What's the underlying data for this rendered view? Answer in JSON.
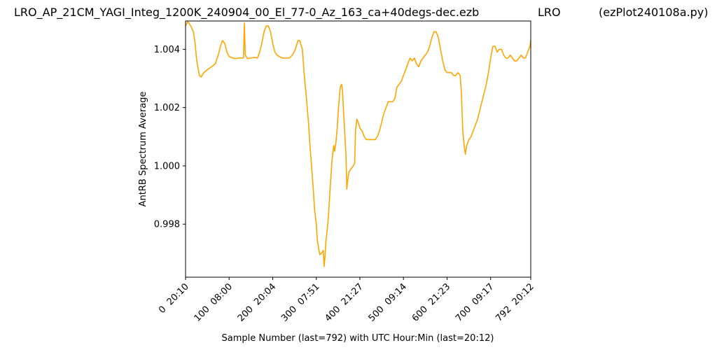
{
  "chart_data": {
    "type": "line",
    "title": "LRO_AP_21CM_YAGI_Integ_1200K_240904_00_El_77-0_Az_163_ca+40degs-dec.ezb",
    "title_center": "LRO",
    "title_right": "(ezPlot240108a.py)",
    "xlabel": "Sample Number (last=792) with UTC Hour:Min (last=20:12)",
    "ylabel": "AntRB Spectrum Average",
    "xlim": [
      0,
      792
    ],
    "ylim": [
      0.99618,
      1.00497
    ],
    "grid": false,
    "x_ticks": [
      {
        "value": 0,
        "label": "0  20:10"
      },
      {
        "value": 100,
        "label": "100  08:00"
      },
      {
        "value": 200,
        "label": "200  20:04"
      },
      {
        "value": 300,
        "label": "300  07:51"
      },
      {
        "value": 400,
        "label": "400  21:27"
      },
      {
        "value": 500,
        "label": "500  09:14"
      },
      {
        "value": 600,
        "label": "600  21:23"
      },
      {
        "value": 700,
        "label": "700  09:17"
      },
      {
        "value": 792,
        "label": "792  20:12"
      }
    ],
    "y_ticks": [
      {
        "value": 0.998,
        "label": "0.998"
      },
      {
        "value": 1.0,
        "label": "1.000"
      },
      {
        "value": 1.002,
        "label": "1.002"
      },
      {
        "value": 1.004,
        "label": "1.004"
      }
    ],
    "series": [
      {
        "name": "",
        "color": "#ffa500",
        "points": [
          [
            0,
            1.0048
          ],
          [
            5,
            1.00495
          ],
          [
            12,
            1.0048
          ],
          [
            18,
            1.0046
          ],
          [
            22,
            1.0042
          ],
          [
            25,
            1.0037
          ],
          [
            28,
            1.0034
          ],
          [
            32,
            1.0031
          ],
          [
            36,
            1.00305
          ],
          [
            42,
            1.0032
          ],
          [
            50,
            1.0033
          ],
          [
            60,
            1.0034
          ],
          [
            68,
            1.0035
          ],
          [
            75,
            1.0038
          ],
          [
            80,
            1.0041
          ],
          [
            85,
            1.0043
          ],
          [
            90,
            1.0042
          ],
          [
            95,
            1.0039
          ],
          [
            100,
            1.00375
          ],
          [
            108,
            1.0037
          ],
          [
            115,
            1.00368
          ],
          [
            122,
            1.0037
          ],
          [
            128,
            1.0037
          ],
          [
            133,
            1.0037
          ],
          [
            135,
            1.0049
          ],
          [
            137,
            1.0038
          ],
          [
            142,
            1.00368
          ],
          [
            150,
            1.0037
          ],
          [
            158,
            1.00372
          ],
          [
            165,
            1.0037
          ],
          [
            170,
            1.0039
          ],
          [
            175,
            1.0042
          ],
          [
            180,
            1.0046
          ],
          [
            185,
            1.0048
          ],
          [
            190,
            1.0048
          ],
          [
            195,
            1.0046
          ],
          [
            200,
            1.0042
          ],
          [
            205,
            1.0039
          ],
          [
            210,
            1.0038
          ],
          [
            215,
            1.00375
          ],
          [
            222,
            1.0037
          ],
          [
            230,
            1.0037
          ],
          [
            238,
            1.0037
          ],
          [
            245,
            1.0038
          ],
          [
            252,
            1.004
          ],
          [
            258,
            1.0043
          ],
          [
            262,
            1.0043
          ],
          [
            268,
            1.004
          ],
          [
            270,
            1.0036
          ],
          [
            272,
            1.0032
          ],
          [
            275,
            1.0027
          ],
          [
            278,
            1.0022
          ],
          [
            282,
            1.0015
          ],
          [
            285,
            1.0008
          ],
          [
            290,
            0.9998
          ],
          [
            293,
            0.9992
          ],
          [
            296,
            0.9985
          ],
          [
            300,
            0.998
          ],
          [
            302,
            0.9975
          ],
          [
            305,
            0.9972
          ],
          [
            308,
            0.99695
          ],
          [
            312,
            0.997
          ],
          [
            316,
            0.9971
          ],
          [
            318,
            0.99655
          ],
          [
            320,
            0.9969
          ],
          [
            322,
            0.9974
          ],
          [
            325,
            0.9978
          ],
          [
            328,
            0.9983
          ],
          [
            330,
            0.9988
          ],
          [
            333,
            0.9995
          ],
          [
            336,
            1.0002
          ],
          [
            340,
            1.0007
          ],
          [
            342,
            1.0005
          ],
          [
            345,
            1.0008
          ],
          [
            348,
            1.0013
          ],
          [
            350,
            1.0018
          ],
          [
            353,
            1.0024
          ],
          [
            355,
            1.0027
          ],
          [
            358,
            1.0028
          ],
          [
            360,
            1.0026
          ],
          [
            362,
            1.002
          ],
          [
            365,
            1.0012
          ],
          [
            368,
            1.0004
          ],
          [
            370,
            0.9992
          ],
          [
            372,
            0.9995
          ],
          [
            375,
            0.9998
          ],
          [
            380,
            0.9999
          ],
          [
            385,
            1.0
          ],
          [
            388,
            1.0001
          ],
          [
            390,
            1.0012
          ],
          [
            393,
            1.0016
          ],
          [
            396,
            1.0015
          ],
          [
            400,
            1.0013
          ],
          [
            405,
            1.0012
          ],
          [
            410,
            1.001
          ],
          [
            415,
            1.0009
          ],
          [
            420,
            1.0009
          ],
          [
            425,
            1.0009
          ],
          [
            430,
            1.0009
          ],
          [
            435,
            1.0009
          ],
          [
            440,
            1.001
          ],
          [
            445,
            1.0012
          ],
          [
            450,
            1.0015
          ],
          [
            455,
            1.0018
          ],
          [
            460,
            1.002
          ],
          [
            465,
            1.0022
          ],
          [
            470,
            1.0022
          ],
          [
            475,
            1.0022
          ],
          [
            480,
            1.0023
          ],
          [
            485,
            1.0027
          ],
          [
            490,
            1.0028
          ],
          [
            495,
            1.0029
          ],
          [
            500,
            1.0031
          ],
          [
            505,
            1.0033
          ],
          [
            510,
            1.0035
          ],
          [
            515,
            1.0037
          ],
          [
            520,
            1.0036
          ],
          [
            525,
            1.0037
          ],
          [
            530,
            1.0035
          ],
          [
            535,
            1.0034
          ],
          [
            540,
            1.0036
          ],
          [
            545,
            1.0037
          ],
          [
            550,
            1.0038
          ],
          [
            555,
            1.0039
          ],
          [
            560,
            1.0041
          ],
          [
            565,
            1.0044
          ],
          [
            570,
            1.0046
          ],
          [
            575,
            1.0046
          ],
          [
            580,
            1.0044
          ],
          [
            585,
            1.004
          ],
          [
            590,
            1.0036
          ],
          [
            595,
            1.0033
          ],
          [
            600,
            1.0032
          ],
          [
            610,
            1.0032
          ],
          [
            615,
            1.0031
          ],
          [
            620,
            1.0031
          ],
          [
            625,
            1.0032
          ],
          [
            630,
            1.0031
          ],
          [
            633,
            1.0025
          ],
          [
            636,
            1.0012
          ],
          [
            640,
            1.0006
          ],
          [
            642,
            1.0004
          ],
          [
            645,
            1.0007
          ],
          [
            650,
            1.0009
          ],
          [
            655,
            1.001
          ],
          [
            660,
            1.0012
          ],
          [
            665,
            1.0014
          ],
          [
            670,
            1.0016
          ],
          [
            675,
            1.0019
          ],
          [
            680,
            1.0022
          ],
          [
            685,
            1.0025
          ],
          [
            690,
            1.0028
          ],
          [
            695,
            1.0032
          ],
          [
            700,
            1.0037
          ],
          [
            705,
            1.0041
          ],
          [
            710,
            1.0041
          ],
          [
            715,
            1.0039
          ],
          [
            720,
            1.004
          ],
          [
            725,
            1.004
          ],
          [
            730,
            1.0038
          ],
          [
            735,
            1.0037
          ],
          [
            740,
            1.0037
          ],
          [
            745,
            1.0038
          ],
          [
            750,
            1.0037
          ],
          [
            755,
            1.0036
          ],
          [
            760,
            1.0036
          ],
          [
            765,
            1.0037
          ],
          [
            770,
            1.0038
          ],
          [
            775,
            1.0037
          ],
          [
            780,
            1.0037
          ],
          [
            785,
            1.0039
          ],
          [
            790,
            1.0041
          ],
          [
            792,
            1.0043
          ]
        ]
      }
    ]
  }
}
